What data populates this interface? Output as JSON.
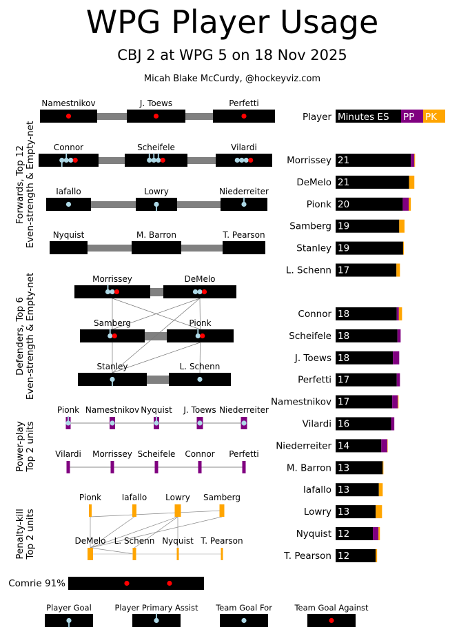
{
  "title": "WPG Player Usage",
  "subtitle": "CBJ 2 at WPG 5 on 18 Nov 2025",
  "credit": "Micah Blake McCurdy, @hockeyviz.com",
  "colors": {
    "es": "#000000",
    "pp": "#800080",
    "pk": "#ffa500",
    "player_goal": "#add8e6",
    "team_goal_against": "#ff0000",
    "line": "#808080"
  },
  "sections": {
    "forwards": [
      "Forwards, Top 12",
      "Even-strength & Empty-net"
    ],
    "defenders": [
      "Defenders, Top 6",
      "Even-strength & Empty-net"
    ],
    "powerplay": [
      "Power-play",
      "Top 2 units"
    ],
    "penaltykill": [
      "Penalty-kill",
      "Top 2 units"
    ]
  },
  "forward_lines": [
    [
      {
        "name": "Namestnikov",
        "marks": [
          "ga"
        ]
      },
      {
        "name": "J. Toews",
        "marks": [
          "ga"
        ]
      },
      {
        "name": "Perfetti",
        "marks": [
          "ga"
        ]
      }
    ],
    [
      {
        "name": "Connor",
        "marks": [
          "pg",
          "pa",
          "tg",
          "ga"
        ]
      },
      {
        "name": "Scheifele",
        "marks": [
          "pa",
          "pa",
          "pa",
          "ga"
        ]
      },
      {
        "name": "Vilardi",
        "marks": [
          "tg",
          "tg",
          "tg",
          "ga"
        ]
      }
    ],
    [
      {
        "name": "Iafallo",
        "marks": [
          "tg"
        ]
      },
      {
        "name": "Lowry",
        "marks": [
          "pg"
        ]
      },
      {
        "name": "Niederreiter",
        "marks": [
          "pa"
        ]
      }
    ],
    [
      {
        "name": "Nyquist",
        "marks": []
      },
      {
        "name": "M. Barron",
        "marks": []
      },
      {
        "name": "T. Pearson",
        "marks": []
      }
    ]
  ],
  "defense_pairs": [
    [
      {
        "name": "Morrissey",
        "marks": [
          "pa",
          "tg",
          "ga"
        ]
      },
      {
        "name": "DeMelo",
        "marks": [
          "tg",
          "tg",
          "ga"
        ]
      }
    ],
    [
      {
        "name": "Samberg",
        "marks": [
          "pa",
          "ga"
        ]
      },
      {
        "name": "Pionk",
        "marks": [
          "pa",
          "ga"
        ]
      }
    ],
    [
      {
        "name": "Stanley",
        "marks": [
          "pg"
        ]
      },
      {
        "name": "L. Schenn",
        "marks": [
          "tg"
        ]
      }
    ]
  ],
  "pp_units": [
    [
      {
        "name": "Pionk",
        "marks": [
          "pa"
        ]
      },
      {
        "name": "Namestnikov",
        "marks": [
          "tg"
        ]
      },
      {
        "name": "Nyquist",
        "marks": [
          "pa"
        ]
      },
      {
        "name": "J. Toews",
        "marks": [
          "tg"
        ]
      },
      {
        "name": "Niederreiter",
        "marks": [
          "tg"
        ]
      }
    ],
    [
      {
        "name": "Vilardi",
        "marks": []
      },
      {
        "name": "Morrissey",
        "marks": []
      },
      {
        "name": "Scheifele",
        "marks": []
      },
      {
        "name": "Connor",
        "marks": []
      },
      {
        "name": "Perfetti",
        "marks": []
      }
    ]
  ],
  "pk_units": [
    [
      {
        "name": "Pionk"
      },
      {
        "name": "Iafallo"
      },
      {
        "name": "Lowry"
      },
      {
        "name": "Samberg"
      }
    ],
    [
      {
        "name": "DeMelo"
      },
      {
        "name": "L. Schenn"
      },
      {
        "name": "Nyquist"
      },
      {
        "name": "T. Pearson"
      }
    ]
  ],
  "goalie": {
    "label": "Comrie 91%",
    "marks": [
      "ga",
      "ga"
    ]
  },
  "legend": [
    "Player Goal",
    "Player Primary Assist",
    "Team Goal For",
    "Team Goal Against"
  ],
  "chart_data": {
    "type": "bar",
    "orientation": "horizontal",
    "title": "Player",
    "legend": [
      "Minutes ES",
      "PP",
      "PK"
    ],
    "groups": [
      [
        "Morrissey",
        "DeMelo",
        "Pionk",
        "Samberg",
        "Stanley",
        "L. Schenn"
      ],
      [
        "Connor",
        "Scheifele",
        "J. Toews",
        "Perfetti",
        "Namestnikov",
        "Vilardi",
        "Niederreiter",
        "M. Barron",
        "Iafallo",
        "Lowry",
        "Nyquist",
        "T. Pearson"
      ]
    ],
    "categories": [
      "Morrissey",
      "DeMelo",
      "Pionk",
      "Samberg",
      "Stanley",
      "L. Schenn",
      "Connor",
      "Scheifele",
      "J. Toews",
      "Perfetti",
      "Namestnikov",
      "Vilardi",
      "Niederreiter",
      "M. Barron",
      "Iafallo",
      "Lowry",
      "Nyquist",
      "T. Pearson"
    ],
    "labels": [
      21,
      21,
      20,
      19,
      19,
      17,
      18,
      18,
      18,
      17,
      17,
      16,
      14,
      13,
      13,
      13,
      12,
      12
    ],
    "series": [
      {
        "name": "Minutes ES",
        "values": [
          21.4,
          20.9,
          19.1,
          18.1,
          19.2,
          17.3,
          17.4,
          17.6,
          16.3,
          17.4,
          16.1,
          15.8,
          13.0,
          13.4,
          12.3,
          11.4,
          10.6,
          11.4
        ]
      },
      {
        "name": "PP",
        "values": [
          1.0,
          0,
          1.7,
          0,
          0,
          0,
          0.6,
          0.9,
          1.8,
          0.9,
          1.6,
          0.9,
          1.7,
          0,
          0,
          0,
          1.6,
          0
        ]
      },
      {
        "name": "PK",
        "values": [
          0.2,
          1.5,
          0.6,
          1.5,
          0.2,
          1.0,
          0.9,
          0,
          0,
          0,
          0.2,
          0,
          0.1,
          0.2,
          1.1,
          1.8,
          0.4,
          0.4
        ]
      }
    ]
  }
}
